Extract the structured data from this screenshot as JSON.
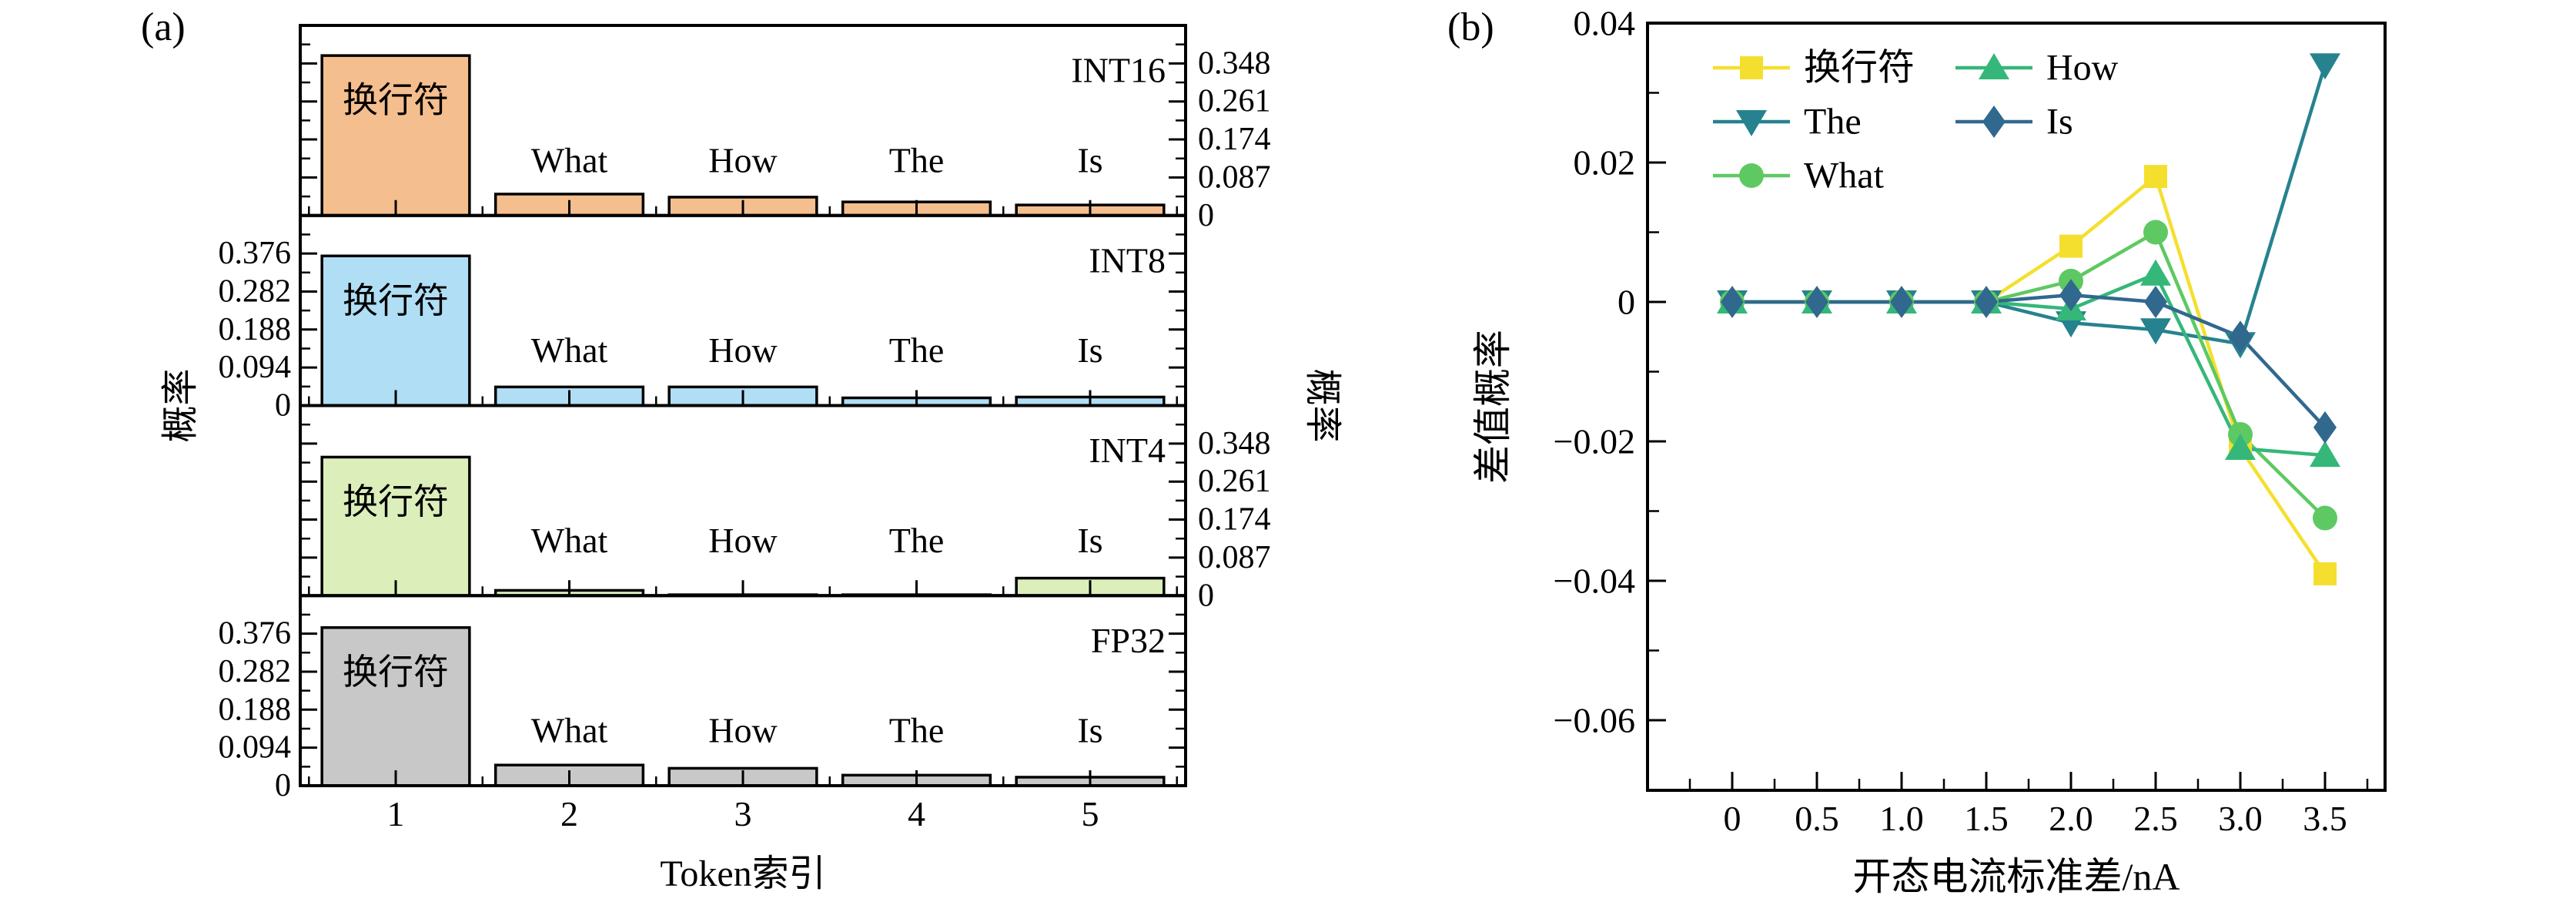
{
  "figure": {
    "panel_a_label": "(a)",
    "panel_b_label": "(b)",
    "background": "#ffffff",
    "axis_color": "#000000"
  },
  "chart_data": [
    {
      "panel": "a",
      "type": "bar",
      "xlabel": "Token索引",
      "ylabel_left": "概率",
      "ylabel_right": "概率",
      "categories": [
        "1",
        "2",
        "3",
        "4",
        "5"
      ],
      "bar_labels": [
        "换行符",
        "What",
        "How",
        "The",
        "Is"
      ],
      "subplots": [
        {
          "name": "INT16",
          "label_side": "right",
          "ymax": 0.435,
          "ytick_values": [
            0,
            0.087,
            0.174,
            0.261,
            0.348
          ],
          "ytick_labels": [
            "0",
            "0.087",
            "0.174",
            "0.261",
            "0.348"
          ],
          "bar_color": "#F5BE8E",
          "values": [
            0.366,
            0.049,
            0.042,
            0.031,
            0.024
          ]
        },
        {
          "name": "INT8",
          "label_side": "left",
          "ymax": 0.47,
          "ytick_values": [
            0,
            0.094,
            0.188,
            0.282,
            0.376
          ],
          "ytick_labels": [
            "0",
            "0.094",
            "0.188",
            "0.282",
            "0.376"
          ],
          "bar_color": "#B0DEF5",
          "values": [
            0.37,
            0.046,
            0.046,
            0.019,
            0.021
          ]
        },
        {
          "name": "INT4",
          "label_side": "right",
          "ymax": 0.435,
          "ytick_values": [
            0,
            0.087,
            0.174,
            0.261,
            0.348
          ],
          "ytick_labels": [
            "0",
            "0.087",
            "0.174",
            "0.261",
            "0.348"
          ],
          "bar_color": "#DCEFBB",
          "values": [
            0.317,
            0.012,
            0.002,
            0.002,
            0.04
          ]
        },
        {
          "name": "FP32",
          "label_side": "left",
          "ymax": 0.47,
          "ytick_values": [
            0,
            0.094,
            0.188,
            0.282,
            0.376
          ],
          "ytick_labels": [
            "0",
            "0.094",
            "0.188",
            "0.282",
            "0.376"
          ],
          "bar_color": "#C8C8C8",
          "values": [
            0.391,
            0.051,
            0.043,
            0.026,
            0.021
          ]
        }
      ]
    },
    {
      "panel": "b",
      "type": "line",
      "xlabel": "开态电流标准差/nA",
      "ylabel": "差值概率",
      "x": [
        0,
        0.5,
        1.0,
        1.5,
        2.0,
        2.5,
        3.0,
        3.5
      ],
      "xtick_labels": [
        "0",
        "0.5",
        "1.0",
        "1.5",
        "2.0",
        "2.5",
        "3.0",
        "3.5"
      ],
      "xlim": [
        -0.5,
        3.85
      ],
      "ylim": [
        -0.07,
        0.04
      ],
      "ytick_values": [
        0.04,
        0.02,
        0,
        -0.02,
        -0.04,
        -0.06
      ],
      "ytick_labels": [
        "0.04",
        "0.02",
        "0",
        "−0.02",
        "−0.04",
        "−0.06"
      ],
      "grid": false,
      "legend_position": "upper-left-inside",
      "series": [
        {
          "name": "换行符",
          "marker": "square",
          "color": "#F5DF2E",
          "values": [
            0,
            0,
            0,
            0,
            0.008,
            0.018,
            -0.021,
            -0.039
          ]
        },
        {
          "name": "The",
          "marker": "triangle-down",
          "color": "#26828E",
          "values": [
            0,
            0,
            0,
            0,
            -0.003,
            -0.004,
            -0.006,
            0.034
          ]
        },
        {
          "name": "What",
          "marker": "circle",
          "color": "#5EC962",
          "values": [
            0,
            0,
            0,
            0,
            0.003,
            0.01,
            -0.019,
            -0.031
          ]
        },
        {
          "name": "How",
          "marker": "triangle-up",
          "color": "#35B779",
          "values": [
            0,
            0,
            0,
            0,
            -0.001,
            0.004,
            -0.021,
            -0.022
          ]
        },
        {
          "name": "Is",
          "marker": "diamond",
          "color": "#31688E",
          "values": [
            0,
            0,
            0,
            0,
            0.001,
            0.0,
            -0.005,
            -0.018
          ]
        }
      ],
      "legend": {
        "columns": [
          [
            "换行符",
            "The",
            "What"
          ],
          [
            "How",
            "Is"
          ]
        ]
      }
    }
  ]
}
